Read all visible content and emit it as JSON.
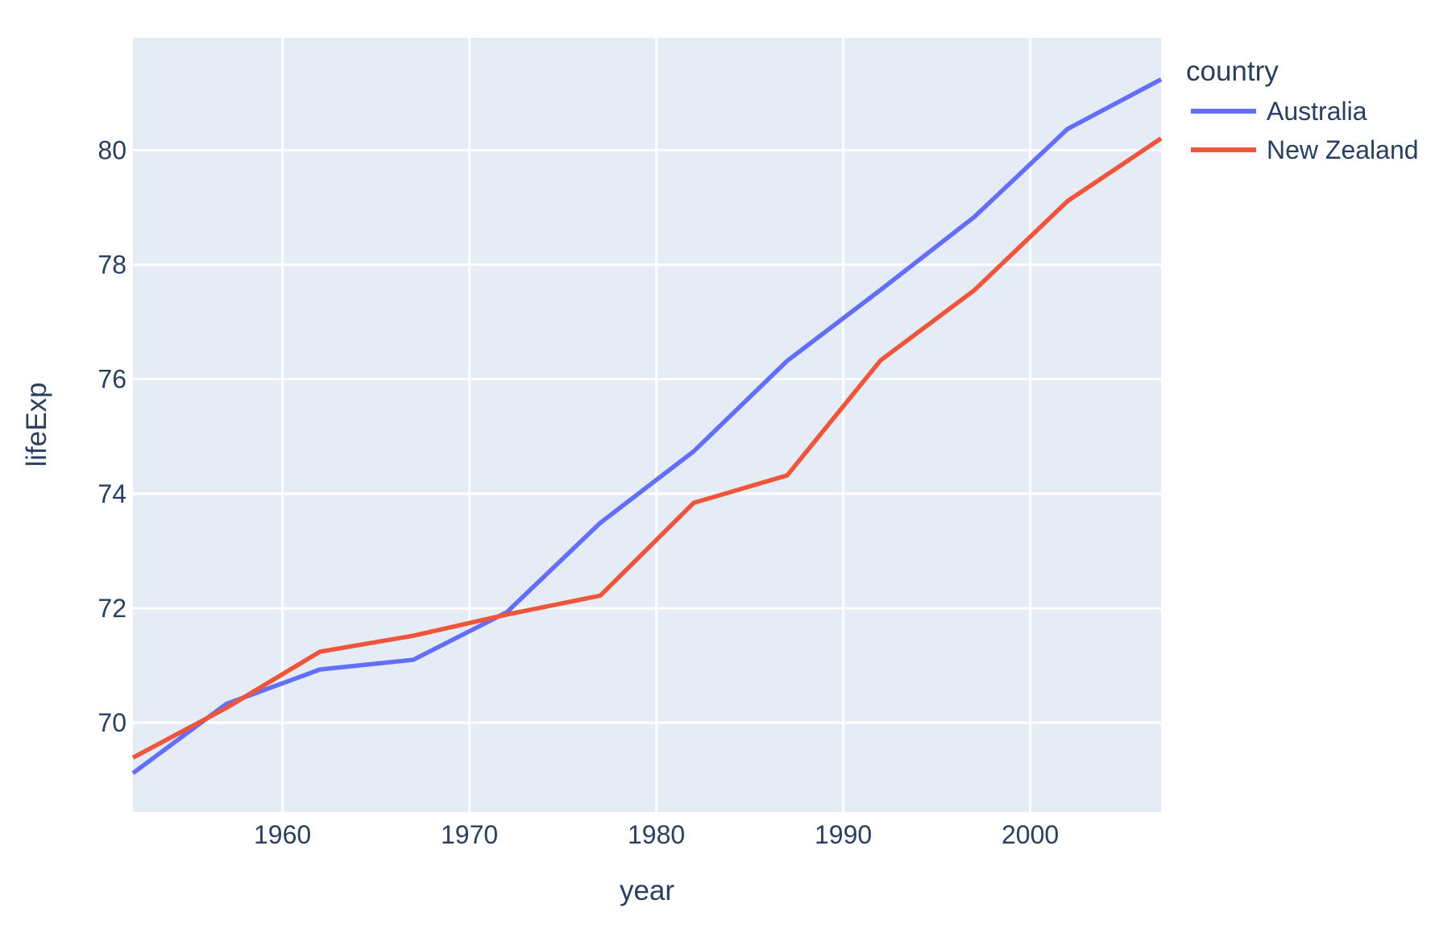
{
  "chart_data": {
    "type": "line",
    "xlabel": "year",
    "ylabel": "lifeExp",
    "legend_title": "country",
    "x": [
      1952,
      1957,
      1962,
      1967,
      1972,
      1977,
      1982,
      1987,
      1992,
      1997,
      2002,
      2007
    ],
    "series": [
      {
        "name": "Australia",
        "color": "#636efa",
        "values": [
          69.12,
          70.33,
          70.93,
          71.1,
          71.93,
          73.49,
          74.74,
          76.32,
          77.56,
          78.83,
          80.37,
          81.235
        ]
      },
      {
        "name": "New Zealand",
        "color": "#ef553b",
        "values": [
          69.39,
          70.26,
          71.24,
          71.52,
          71.89,
          72.22,
          73.84,
          74.32,
          76.33,
          77.55,
          79.11,
          80.204
        ]
      }
    ],
    "x_ticks": [
      1960,
      1970,
      1980,
      1990,
      2000
    ],
    "y_ticks": [
      70,
      72,
      74,
      76,
      78,
      80
    ],
    "xlim": [
      1952,
      2007
    ],
    "ylim": [
      68.44,
      81.96
    ],
    "grid": true,
    "legend_position": "outside-top-right"
  },
  "theme": {
    "plot_background": "#e5ecf6",
    "paper_background": "#ffffff",
    "grid_color": "#ffffff",
    "text_color": "#2a3f5f"
  }
}
